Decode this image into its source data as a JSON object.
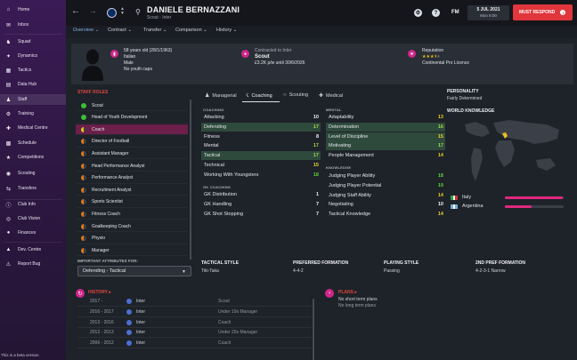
{
  "sidebar": {
    "items": [
      {
        "label": "Home",
        "icon": "home-icon"
      },
      {
        "label": "Inbox",
        "icon": "inbox-icon"
      },
      {
        "label": "Squad",
        "icon": "squad-icon"
      },
      {
        "label": "Dynamics",
        "icon": "dynamics-icon"
      },
      {
        "label": "Tactics",
        "icon": "tactics-icon"
      },
      {
        "label": "Data Hub",
        "icon": "data-hub-icon"
      },
      {
        "label": "Staff",
        "icon": "staff-icon"
      },
      {
        "label": "Training",
        "icon": "training-icon"
      },
      {
        "label": "Medical Centre",
        "icon": "medical-icon"
      },
      {
        "label": "Schedule",
        "icon": "schedule-icon"
      },
      {
        "label": "Competitions",
        "icon": "competitions-icon"
      },
      {
        "label": "Scouting",
        "icon": "scouting-icon"
      },
      {
        "label": "Transfers",
        "icon": "transfers-icon"
      },
      {
        "label": "Club Info",
        "icon": "club-info-icon"
      },
      {
        "label": "Club Vision",
        "icon": "club-vision-icon"
      },
      {
        "label": "Finances",
        "icon": "finances-icon"
      },
      {
        "label": "Dev. Centre",
        "icon": "dev-centre-icon"
      },
      {
        "label": "Report Bug",
        "icon": "report-bug-icon"
      }
    ],
    "beta_note": "This is a beta version"
  },
  "header": {
    "player_name": "DANIELE BERNAZZANI",
    "subtitle": "Scout - Inter",
    "fm_logo": "FM",
    "date": "5 JUL 2021",
    "time": "Mon 8:00",
    "respond_label": "MUST RESPOND",
    "respond_badge": "!"
  },
  "subnav": {
    "tabs": [
      "Overview",
      "Contract",
      "Transfer",
      "Comparison",
      "History"
    ]
  },
  "info": {
    "age": "58 years old (28/1/1963)",
    "nationality": "Italian",
    "gender": "Male",
    "caps": "No youth caps",
    "contracted_label": "Contracted to Inter",
    "job": "Scout",
    "wage": "£3.2K p/w until 30/6/2026",
    "reputation_label": "Reputation",
    "reputation_stars": 3.5,
    "licence": "Continental Pro Licence",
    "colors": {
      "accent": "#d0268a",
      "star": "#e8c21c"
    }
  },
  "staff_roles": {
    "title": "STAFF ROLES",
    "roles": [
      {
        "label": "Scout",
        "color": "#3cbf3a",
        "selected": false
      },
      {
        "label": "Head of Youth Development",
        "color": "#3cbf3a",
        "selected": false
      },
      {
        "label": "Coach",
        "color": "#e8c21c",
        "selected": true
      },
      {
        "label": "Director of Football",
        "color": "#e07a1c",
        "selected": false
      },
      {
        "label": "Assistant Manager",
        "color": "#e07a1c",
        "selected": false
      },
      {
        "label": "Head Performance Analyst",
        "color": "#e07a1c",
        "selected": false
      },
      {
        "label": "Performance Analyst",
        "color": "#e07a1c",
        "selected": false
      },
      {
        "label": "Recruitment Analyst",
        "color": "#e07a1c",
        "selected": false
      },
      {
        "label": "Sports Scientist",
        "color": "#e07a1c",
        "selected": false
      },
      {
        "label": "Fitness Coach",
        "color": "#e07a1c",
        "selected": false
      },
      {
        "label": "Goalkeeping Coach",
        "color": "#e07a1c",
        "selected": false
      },
      {
        "label": "Physio",
        "color": "#e07a1c",
        "selected": false
      },
      {
        "label": "Manager",
        "color": "#e07a1c",
        "selected": false
      }
    ],
    "important_label": "IMPORTANT ATTRIBUTES FOR:",
    "important_value": "Defending - Tactical"
  },
  "tabs": [
    {
      "label": "Managerial",
      "icon": "managerial-icon"
    },
    {
      "label": "Coaching",
      "icon": "coaching-icon"
    },
    {
      "label": "Scouting",
      "icon": "scouting-tab-icon"
    },
    {
      "label": "Medical",
      "icon": "medical-tab-icon"
    }
  ],
  "attributes": {
    "coaching_h": "COACHING",
    "coaching": [
      {
        "name": "Attacking",
        "value": 10,
        "hl": false
      },
      {
        "name": "Defending",
        "value": 17,
        "hl": true
      },
      {
        "name": "Fitness",
        "value": 8,
        "hl": false
      },
      {
        "name": "Mental",
        "value": 17,
        "hl": false
      },
      {
        "name": "Tactical",
        "value": 17,
        "hl": true
      },
      {
        "name": "Technical",
        "value": 15,
        "hl": false
      },
      {
        "name": "Working With Youngsters",
        "value": 18,
        "hl": false
      }
    ],
    "gk_h": "GK COACHING",
    "gk": [
      {
        "name": "GK Distribution",
        "value": 1,
        "hl": false
      },
      {
        "name": "GK Handling",
        "value": 7,
        "hl": false
      },
      {
        "name": "GK Shot Stopping",
        "value": 7,
        "hl": false
      }
    ],
    "mental_h": "MENTAL",
    "mental": [
      {
        "name": "Adaptability",
        "value": 13,
        "hl": false
      },
      {
        "name": "Determination",
        "value": 16,
        "hl": true
      },
      {
        "name": "Level of Discipline",
        "value": 15,
        "hl": true
      },
      {
        "name": "Motivating",
        "value": 17,
        "hl": true
      },
      {
        "name": "People Management",
        "value": 14,
        "hl": false
      }
    ],
    "knowledge_h": "KNOWLEDGE",
    "knowledge": [
      {
        "name": "Judging Player Ability",
        "value": 18,
        "hl": false
      },
      {
        "name": "Judging Player Potential",
        "value": 19,
        "hl": false
      },
      {
        "name": "Judging Staff Ability",
        "value": 14,
        "hl": false
      },
      {
        "name": "Negotiating",
        "value": 10,
        "hl": false
      },
      {
        "name": "Tactical Knowledge",
        "value": 14,
        "hl": false
      }
    ]
  },
  "personality": {
    "heading": "PERSONALITY",
    "value": "Fairly Determined"
  },
  "world_knowledge": {
    "heading": "WORLD KNOWLEDGE",
    "countries": [
      {
        "name": "Italy",
        "level": 0.98,
        "flag": [
          "#2f9e44",
          "#ffffff",
          "#d32f2f"
        ]
      },
      {
        "name": "Argentina",
        "level": 0.45,
        "flag": [
          "#75aadb",
          "#ffffff",
          "#75aadb"
        ]
      }
    ]
  },
  "tactical": [
    {
      "heading": "TACTICAL STYLE",
      "value": "Tiki-Taka"
    },
    {
      "heading": "PREFERRED FORMATION",
      "value": "4-4-2"
    },
    {
      "heading": "PLAYING STYLE",
      "value": "Passing"
    },
    {
      "heading": "2ND PREF FORMATION",
      "value": "4-2-3-1 Narrow"
    }
  ],
  "history": {
    "heading": "HISTORY",
    "rows": [
      {
        "years": "2017 -",
        "club": "Inter",
        "role": "Scout"
      },
      {
        "years": "2016 - 2017",
        "club": "Inter",
        "role": "Under 19s Manager"
      },
      {
        "years": "2013 - 2016",
        "club": "Inter",
        "role": "Coach"
      },
      {
        "years": "2012 - 2013",
        "club": "Inter",
        "role": "Under 20s Manager"
      },
      {
        "years": "2006 - 2012",
        "club": "Inter",
        "role": "Coach"
      }
    ]
  },
  "plans": {
    "heading": "PLANS",
    "line1": "No short term plans",
    "line2": "No long term plans"
  }
}
